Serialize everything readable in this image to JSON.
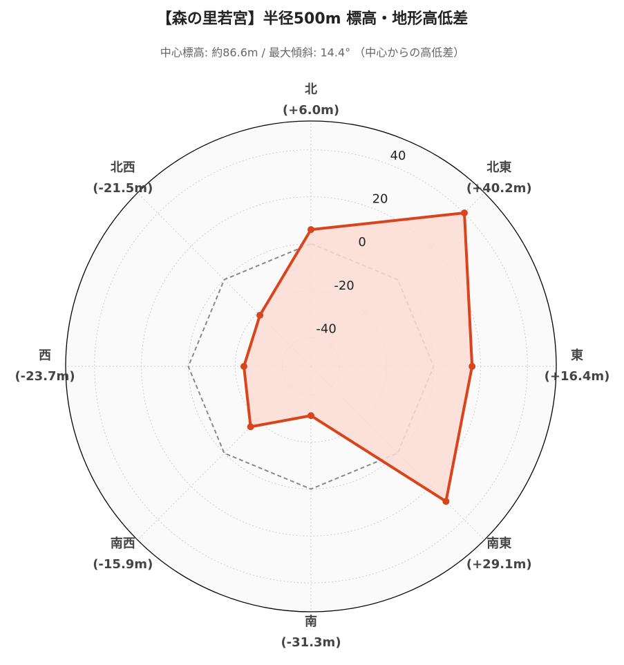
{
  "chart_data": {
    "type": "radar",
    "title": "【森の里若宮】半径500m 標高・地形高低差",
    "subtitle": "中心標高: 約86.6m / 最大傾斜: 14.4° （中心からの高低差）",
    "categories": [
      "北",
      "北東",
      "東",
      "南東",
      "南",
      "南西",
      "西",
      "北西"
    ],
    "series": [
      {
        "color": "#d9441c",
        "fill": "#fbdcd4",
        "values": [
          6.0,
          40.2,
          16.4,
          29.1,
          -31.3,
          -15.9,
          -23.7,
          -21.5
        ],
        "value_labels": [
          "(+6.0m)",
          "(+40.2m)",
          "(+16.4m)",
          "(+29.1m)",
          "(-31.3m)",
          "(-15.9m)",
          "(-23.7m)",
          "(-21.5m)"
        ]
      }
    ],
    "reference_value": 0,
    "ylim": [
      -52.3,
      52.3
    ],
    "yticks": [
      -40,
      -20,
      0,
      20,
      40
    ],
    "grid": true
  }
}
